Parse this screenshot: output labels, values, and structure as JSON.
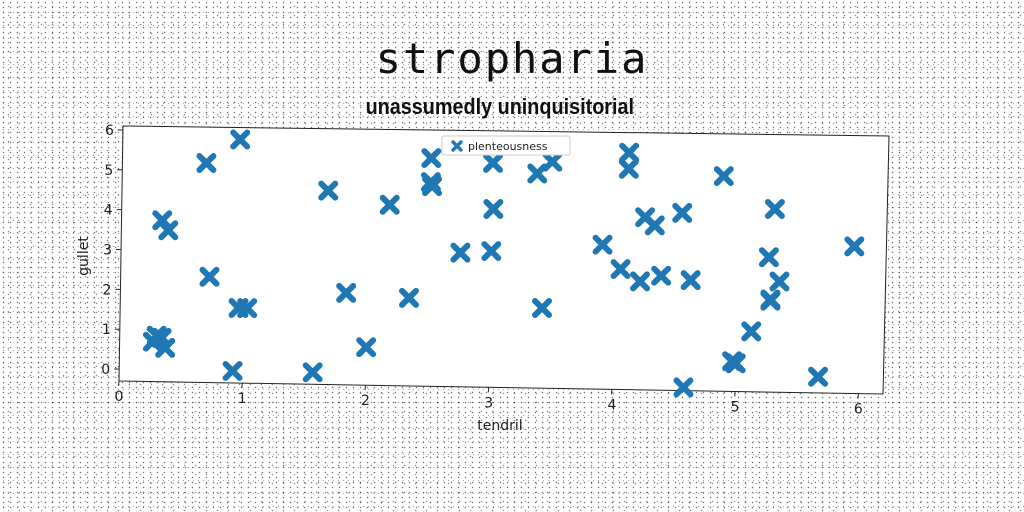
{
  "chart_data": {
    "type": "scatter",
    "title": "stropharia",
    "subtitle": "unassumedly uninquisitorial",
    "xlabel": "tendril",
    "ylabel": "gullet",
    "xlim": [
      0,
      6.2
    ],
    "ylim": [
      -0.3,
      6.1
    ],
    "xticks": [
      0,
      1,
      2,
      3,
      4,
      5,
      6
    ],
    "yticks": [
      0,
      1,
      2,
      3,
      4,
      5,
      6
    ],
    "grid": false,
    "legend": "top-center",
    "series": [
      {
        "name": "plenteousness",
        "color": "#1f77b4",
        "marker": "x",
        "x": [
          0.95,
          0.68,
          0.72,
          0.33,
          0.38,
          0.27,
          0.34,
          0.3,
          0.37,
          0.92,
          0.96,
          1.03,
          1.57,
          1.67,
          1.83,
          2.0,
          2.17,
          2.34,
          2.5,
          2.5,
          2.51,
          2.75,
          3.0,
          3.01,
          3.0,
          3.36,
          3.42,
          3.48,
          3.9,
          4.05,
          4.1,
          4.1,
          4.21,
          4.24,
          4.32,
          4.38,
          4.54,
          4.58,
          4.62,
          4.87,
          4.97,
          5.0,
          5.12,
          5.25,
          5.27,
          5.27,
          5.29,
          5.34,
          5.67,
          5.94
        ],
        "y": [
          5.8,
          5.2,
          2.35,
          3.75,
          3.5,
          0.7,
          0.8,
          0.85,
          0.55,
          0.0,
          1.58,
          1.58,
          0.0,
          4.55,
          2.0,
          0.65,
          4.22,
          1.9,
          5.4,
          4.8,
          4.7,
          3.05,
          5.3,
          4.15,
          3.1,
          5.05,
          1.7,
          5.35,
          3.3,
          2.7,
          5.6,
          5.2,
          2.4,
          4.0,
          3.8,
          2.55,
          4.12,
          -0.22,
          2.45,
          5.05,
          0.45,
          0.4,
          1.2,
          3.05,
          1.97,
          2.0,
          4.25,
          2.45,
          0.1,
          3.35
        ]
      }
    ]
  }
}
